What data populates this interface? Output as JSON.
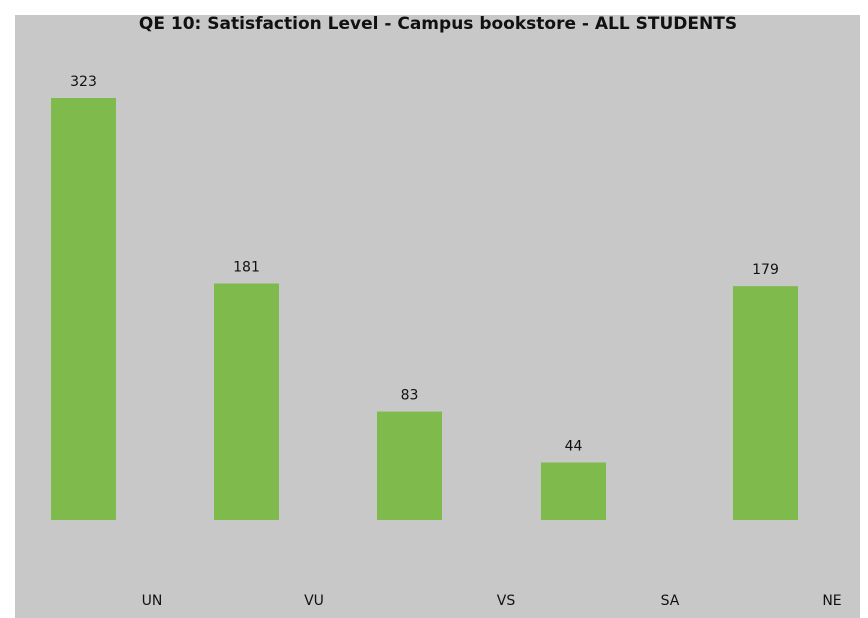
{
  "chart_data": {
    "type": "bar",
    "title": "QE 10: Satisfaction Level - Campus bookstore - ALL STUDENTS",
    "categories": [
      "UN",
      "VU",
      "VS",
      "SA",
      "NE"
    ],
    "values": [
      323,
      181,
      83,
      44,
      179
    ],
    "color": "#7fba4c"
  }
}
